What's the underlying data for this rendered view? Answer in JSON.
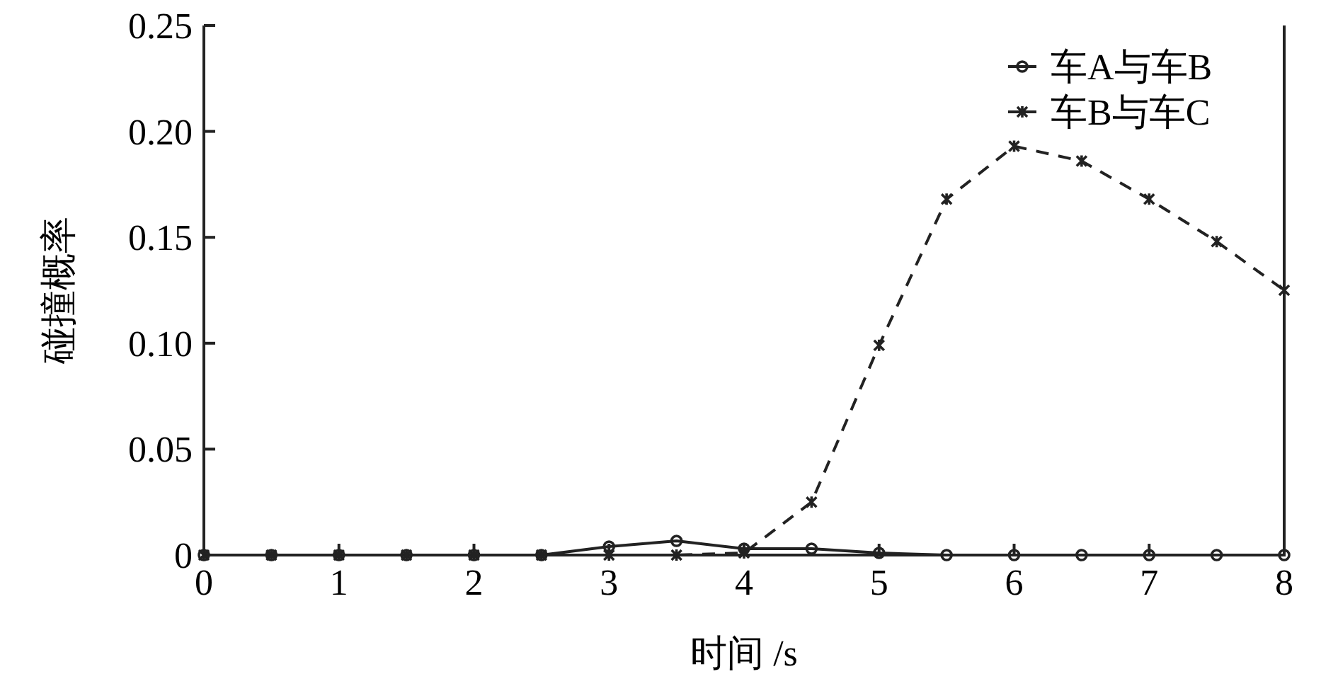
{
  "chart_data": {
    "type": "line",
    "xlabel": "时间 /s",
    "ylabel": "碰撞概率",
    "x": [
      0,
      0.5,
      1,
      1.5,
      2,
      2.5,
      3,
      3.5,
      4,
      4.5,
      5,
      5.5,
      6,
      6.5,
      7,
      7.5,
      8
    ],
    "series": [
      {
        "name": "车A与车B",
        "color": "#222222",
        "marker": "circle",
        "line_style": "solid",
        "values": [
          0,
          0,
          0,
          0,
          0,
          0,
          0.004,
          0.0067,
          0.003,
          0.003,
          0.001,
          0,
          0,
          0,
          0,
          0,
          0
        ]
      },
      {
        "name": "车B与车C",
        "color": "#222222",
        "marker": "cross",
        "line_style": "dashed",
        "values": [
          0,
          0,
          0,
          0,
          0,
          0,
          0,
          0,
          0.001,
          0.025,
          0.099,
          0.168,
          0.193,
          0.186,
          0.168,
          0.148,
          0.125
        ]
      }
    ],
    "xlim": [
      0,
      8
    ],
    "ylim": [
      0,
      0.25
    ],
    "xticks": [
      0,
      1,
      2,
      3,
      4,
      5,
      6,
      7,
      8
    ],
    "yticks": [
      {
        "value": 0,
        "label": "0"
      },
      {
        "value": 0.05,
        "label": "0.05"
      },
      {
        "value": 0.1,
        "label": "0.10"
      },
      {
        "value": 0.15,
        "label": "0.15"
      },
      {
        "value": 0.2,
        "label": "0.20"
      },
      {
        "value": 0.25,
        "label": "0.25"
      }
    ],
    "legend": "top right",
    "grid": false
  }
}
